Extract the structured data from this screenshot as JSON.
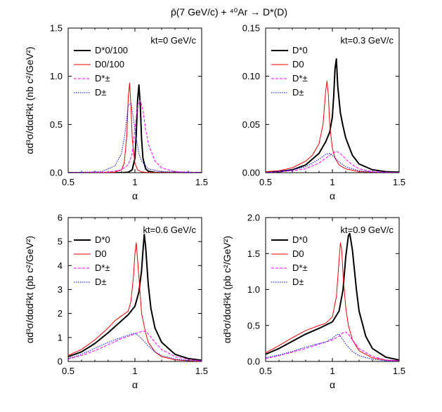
{
  "figure": {
    "title": "p̄(7 GeV/c) + ⁴⁰Ar → D*(D)"
  },
  "chart_data": [
    {
      "type": "line",
      "panel": "top-left",
      "annotation": "kt=0 GeV/c",
      "xlabel": "α",
      "ylabel": "αd³σ/dαd²kt (nb c²/GeV²)",
      "xlim": [
        0.5,
        1.5
      ],
      "ylim": [
        0,
        1.5
      ],
      "xticks": [
        0.5,
        1.0,
        1.5
      ],
      "yticks": [
        0.0,
        0.5,
        1.0,
        1.5
      ],
      "x_tick_labels": [
        "0.5",
        "1",
        "1.5"
      ],
      "y_tick_labels": [
        "0.0",
        "0.5",
        "1.0",
        "1.5"
      ],
      "legend_position": "top-left",
      "series": [
        {
          "name": "D*0/100",
          "color": "#000000",
          "dash": "solid",
          "width": 2,
          "x": [
            0.5,
            0.9,
            0.95,
            0.98,
            1.0,
            1.01,
            1.02,
            1.03,
            1.04,
            1.05,
            1.06,
            1.08,
            1.1,
            1.15,
            1.5
          ],
          "y": [
            0.0,
            0.0,
            0.005,
            0.03,
            0.15,
            0.4,
            0.75,
            0.91,
            0.7,
            0.35,
            0.15,
            0.04,
            0.015,
            0.003,
            0.0
          ]
        },
        {
          "name": "D0/100",
          "color": "#ee0000",
          "dash": "solid",
          "width": 1,
          "x": [
            0.5,
            0.85,
            0.9,
            0.92,
            0.94,
            0.95,
            0.96,
            0.97,
            0.98,
            1.0,
            1.02,
            1.05,
            1.1,
            1.5
          ],
          "y": [
            0.0,
            0.005,
            0.03,
            0.1,
            0.4,
            0.78,
            0.93,
            0.7,
            0.35,
            0.1,
            0.03,
            0.008,
            0.002,
            0.0
          ]
        },
        {
          "name": "D*±",
          "color": "#ff00ff",
          "dash": "dashed",
          "width": 1,
          "x": [
            0.5,
            0.8,
            0.9,
            0.95,
            0.98,
            1.0,
            1.02,
            1.04,
            1.06,
            1.08,
            1.1,
            1.15,
            1.2,
            1.3,
            1.5
          ],
          "y": [
            0.0,
            0.005,
            0.03,
            0.08,
            0.2,
            0.45,
            0.7,
            0.75,
            0.65,
            0.45,
            0.3,
            0.12,
            0.05,
            0.01,
            0.0
          ]
        },
        {
          "name": "D±",
          "color": "#0000ee",
          "dash": "dotted",
          "width": 1,
          "x": [
            0.5,
            0.75,
            0.85,
            0.9,
            0.93,
            0.95,
            0.97,
            0.99,
            1.01,
            1.03,
            1.05,
            1.1,
            1.2,
            1.5
          ],
          "y": [
            0.0,
            0.01,
            0.07,
            0.2,
            0.45,
            0.7,
            0.72,
            0.55,
            0.35,
            0.2,
            0.12,
            0.04,
            0.01,
            0.0
          ]
        }
      ]
    },
    {
      "type": "line",
      "panel": "top-right",
      "annotation": "kt=0.3 GeV/c",
      "xlabel": "α",
      "ylabel": "",
      "xlim": [
        0.5,
        1.5
      ],
      "ylim": [
        0,
        0.15
      ],
      "xticks": [
        0.5,
        1.0,
        1.5
      ],
      "yticks": [
        0.0,
        0.05,
        0.1,
        0.15
      ],
      "x_tick_labels": [
        "0.5",
        "1",
        "1.5"
      ],
      "y_tick_labels": [
        "0.00",
        "0.05",
        "0.10",
        "0.15"
      ],
      "legend_position": "top-left",
      "series": [
        {
          "name": "D*0",
          "color": "#000000",
          "dash": "solid",
          "width": 2,
          "x": [
            0.5,
            0.6,
            0.7,
            0.8,
            0.9,
            0.95,
            0.98,
            1.0,
            1.01,
            1.02,
            1.03,
            1.04,
            1.06,
            1.08,
            1.1,
            1.15,
            1.2,
            1.3,
            1.4,
            1.5
          ],
          "y": [
            0.0005,
            0.001,
            0.003,
            0.008,
            0.02,
            0.032,
            0.042,
            0.058,
            0.08,
            0.108,
            0.118,
            0.09,
            0.062,
            0.048,
            0.036,
            0.018,
            0.009,
            0.003,
            0.001,
            0.0005
          ]
        },
        {
          "name": "D0",
          "color": "#ee0000",
          "dash": "solid",
          "width": 1,
          "x": [
            0.5,
            0.6,
            0.7,
            0.8,
            0.85,
            0.9,
            0.93,
            0.95,
            0.96,
            0.97,
            0.98,
            1.0,
            1.02,
            1.05,
            1.1,
            1.2,
            1.3,
            1.5
          ],
          "y": [
            0.001,
            0.002,
            0.005,
            0.012,
            0.018,
            0.03,
            0.05,
            0.085,
            0.095,
            0.08,
            0.05,
            0.025,
            0.015,
            0.008,
            0.004,
            0.001,
            0.0005,
            0.0
          ]
        },
        {
          "name": "D*±",
          "color": "#ff00ff",
          "dash": "dashed",
          "width": 1,
          "x": [
            0.5,
            0.7,
            0.8,
            0.9,
            0.95,
            1.0,
            1.03,
            1.05,
            1.08,
            1.1,
            1.15,
            1.2,
            1.3,
            1.5
          ],
          "y": [
            0.0,
            0.002,
            0.004,
            0.01,
            0.015,
            0.02,
            0.022,
            0.021,
            0.017,
            0.014,
            0.008,
            0.004,
            0.001,
            0.0
          ]
        },
        {
          "name": "D±",
          "color": "#0000ee",
          "dash": "dotted",
          "width": 1,
          "x": [
            0.5,
            0.7,
            0.8,
            0.9,
            0.95,
            0.98,
            1.0,
            1.03,
            1.05,
            1.1,
            1.2,
            1.3,
            1.5
          ],
          "y": [
            0.0,
            0.003,
            0.006,
            0.014,
            0.019,
            0.02,
            0.018,
            0.014,
            0.011,
            0.006,
            0.002,
            0.0005,
            0.0
          ]
        }
      ]
    },
    {
      "type": "line",
      "panel": "bottom-left",
      "annotation": "kt=0.6 GeV/c",
      "xlabel": "α",
      "ylabel": "αd³σ/dαd²kt (pb c²/GeV²)",
      "xlim": [
        0.5,
        1.5
      ],
      "ylim": [
        0,
        6
      ],
      "xticks": [
        0.5,
        1.0,
        1.5
      ],
      "yticks": [
        0,
        1,
        2,
        3,
        4,
        5,
        6
      ],
      "x_tick_labels": [
        "0.5",
        "1",
        "1.5"
      ],
      "y_tick_labels": [
        "0",
        "1",
        "2",
        "3",
        "4",
        "5",
        "6"
      ],
      "legend_position": "top-left",
      "series": [
        {
          "name": "D*0",
          "color": "#000000",
          "dash": "solid",
          "width": 2,
          "x": [
            0.5,
            0.6,
            0.7,
            0.8,
            0.9,
            0.95,
            1.0,
            1.03,
            1.05,
            1.06,
            1.07,
            1.08,
            1.1,
            1.12,
            1.15,
            1.2,
            1.3,
            1.4,
            1.5
          ],
          "y": [
            0.2,
            0.4,
            0.75,
            1.2,
            1.7,
            1.95,
            2.3,
            2.9,
            3.8,
            4.6,
            5.3,
            4.8,
            3.2,
            2.2,
            1.4,
            0.8,
            0.3,
            0.12,
            0.05
          ]
        },
        {
          "name": "D0",
          "color": "#ee0000",
          "dash": "solid",
          "width": 1,
          "x": [
            0.5,
            0.6,
            0.7,
            0.8,
            0.85,
            0.9,
            0.95,
            0.97,
            0.99,
            1.0,
            1.01,
            1.03,
            1.05,
            1.08,
            1.1,
            1.15,
            1.2,
            1.3,
            1.4,
            1.5
          ],
          "y": [
            0.25,
            0.5,
            0.9,
            1.4,
            1.7,
            1.9,
            2.1,
            2.5,
            3.6,
            4.5,
            4.95,
            3.5,
            2.0,
            1.2,
            0.8,
            0.4,
            0.2,
            0.07,
            0.03,
            0.01
          ]
        },
        {
          "name": "D*±",
          "color": "#ff00ff",
          "dash": "dashed",
          "width": 1,
          "x": [
            0.5,
            0.6,
            0.7,
            0.8,
            0.9,
            1.0,
            1.05,
            1.08,
            1.1,
            1.15,
            1.2,
            1.3,
            1.4,
            1.5
          ],
          "y": [
            0.1,
            0.25,
            0.45,
            0.7,
            0.95,
            1.15,
            1.25,
            1.25,
            1.15,
            0.8,
            0.5,
            0.2,
            0.08,
            0.03
          ]
        },
        {
          "name": "D±",
          "color": "#0000ee",
          "dash": "dotted",
          "width": 1,
          "x": [
            0.5,
            0.6,
            0.7,
            0.8,
            0.9,
            0.95,
            1.0,
            1.03,
            1.05,
            1.1,
            1.15,
            1.2,
            1.3,
            1.4,
            1.5
          ],
          "y": [
            0.12,
            0.3,
            0.55,
            0.8,
            1.0,
            1.1,
            1.18,
            1.05,
            0.95,
            0.65,
            0.4,
            0.25,
            0.1,
            0.04,
            0.02
          ]
        }
      ]
    },
    {
      "type": "line",
      "panel": "bottom-right",
      "annotation": "kt=0.9 GeV/c",
      "xlabel": "α",
      "ylabel": "αd³σ/dαd²kt (pb c²/GeV²)",
      "xlim": [
        0.5,
        1.5
      ],
      "ylim": [
        0,
        2.0
      ],
      "xticks": [
        0.5,
        1.0,
        1.5
      ],
      "yticks": [
        0.0,
        0.5,
        1.0,
        1.5,
        2.0
      ],
      "x_tick_labels": [
        "0.5",
        "1",
        "1.5"
      ],
      "y_tick_labels": [
        "0.0",
        "0.5",
        "1.0",
        "1.5",
        "2.0"
      ],
      "legend_position": "top-left",
      "series": [
        {
          "name": "D*0",
          "color": "#000000",
          "dash": "solid",
          "width": 2,
          "x": [
            0.5,
            0.6,
            0.7,
            0.8,
            0.9,
            1.0,
            1.05,
            1.08,
            1.1,
            1.12,
            1.13,
            1.15,
            1.18,
            1.2,
            1.25,
            1.3,
            1.4,
            1.5
          ],
          "y": [
            0.1,
            0.18,
            0.28,
            0.38,
            0.46,
            0.55,
            0.7,
            1.0,
            1.45,
            1.75,
            1.78,
            1.55,
            1.0,
            0.7,
            0.35,
            0.18,
            0.06,
            0.02
          ]
        },
        {
          "name": "D0",
          "color": "#ee0000",
          "dash": "solid",
          "width": 1,
          "x": [
            0.5,
            0.6,
            0.7,
            0.8,
            0.9,
            0.95,
            1.0,
            1.03,
            1.05,
            1.06,
            1.07,
            1.08,
            1.1,
            1.12,
            1.15,
            1.2,
            1.3,
            1.4,
            1.5
          ],
          "y": [
            0.12,
            0.22,
            0.33,
            0.43,
            0.5,
            0.53,
            0.62,
            0.9,
            1.4,
            1.65,
            1.55,
            1.2,
            0.75,
            0.5,
            0.3,
            0.15,
            0.05,
            0.02,
            0.01
          ]
        },
        {
          "name": "D*±",
          "color": "#ff00ff",
          "dash": "dashed",
          "width": 1,
          "x": [
            0.5,
            0.6,
            0.7,
            0.8,
            0.9,
            1.0,
            1.05,
            1.08,
            1.1,
            1.12,
            1.15,
            1.2,
            1.3,
            1.4,
            1.5
          ],
          "y": [
            0.04,
            0.08,
            0.13,
            0.18,
            0.24,
            0.3,
            0.35,
            0.4,
            0.41,
            0.38,
            0.3,
            0.18,
            0.07,
            0.02,
            0.01
          ]
        },
        {
          "name": "D±",
          "color": "#0000ee",
          "dash": "dotted",
          "width": 1,
          "x": [
            0.5,
            0.6,
            0.7,
            0.8,
            0.9,
            0.95,
            1.0,
            1.03,
            1.05,
            1.08,
            1.1,
            1.15,
            1.2,
            1.3,
            1.4,
            1.5
          ],
          "y": [
            0.05,
            0.09,
            0.14,
            0.2,
            0.25,
            0.27,
            0.32,
            0.37,
            0.38,
            0.3,
            0.24,
            0.14,
            0.08,
            0.03,
            0.01,
            0.0
          ]
        }
      ]
    }
  ]
}
